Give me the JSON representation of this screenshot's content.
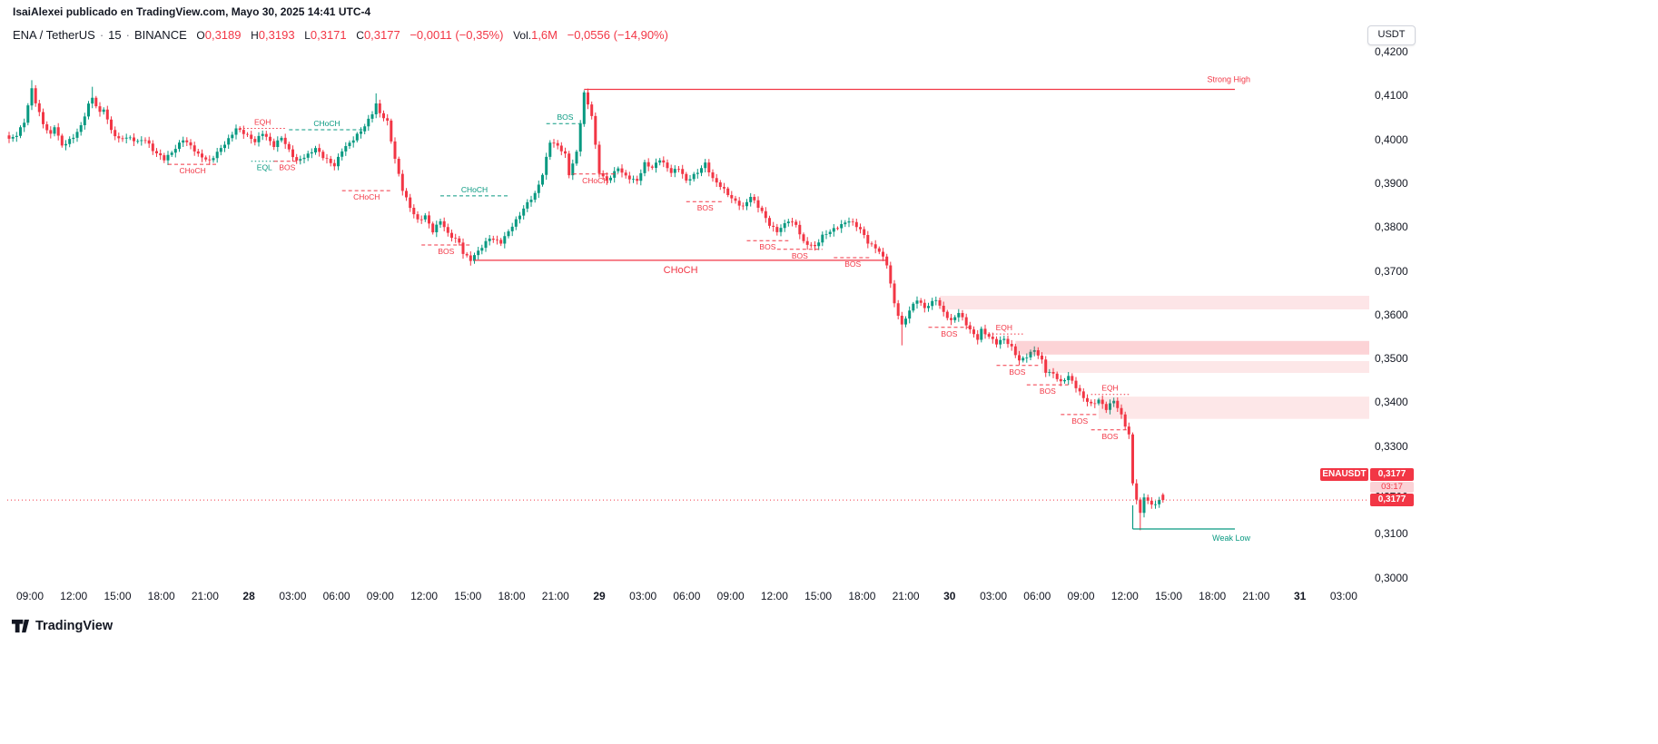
{
  "attribution": "IsaiAlexei publicado en TradingView.com, Mayo 30, 2025 14:41 UTC-4",
  "toolbar": {
    "currency_button": "USDT"
  },
  "legend": {
    "symbol": "ENA / TetherUS",
    "separator": "·",
    "interval": "15",
    "exchange": "BINANCE",
    "ohlc": [
      {
        "label": "O",
        "value": "0,3189"
      },
      {
        "label": "H",
        "value": "0,3193"
      },
      {
        "label": "L",
        "value": "0,3171"
      },
      {
        "label": "C",
        "value": "0,3177"
      }
    ],
    "change": "−0,0011 (−0,35%)",
    "volume_label": "Vol.",
    "volume_value": "1,6M",
    "volume_change": "−0,0556 (−14,90%)"
  },
  "price_badges": {
    "symbol": "ENAUSDT",
    "last_price": "0,3177",
    "countdown": "03:17"
  },
  "footer": {
    "brand": "TradingView"
  },
  "chart_data": {
    "type": "candlestick",
    "symbol": "ENA/USDT",
    "exchange": "BINANCE",
    "interval_minutes": 15,
    "up_color": "#089981",
    "down_color": "#f23645",
    "grid": false,
    "y_axis": {
      "min": 0.2965,
      "max": 0.4235,
      "ticks": [
        {
          "label": "0,4200",
          "value": 0.42
        },
        {
          "label": "0,4100",
          "value": 0.41
        },
        {
          "label": "0,4000",
          "value": 0.4
        },
        {
          "label": "0,3900",
          "value": 0.39
        },
        {
          "label": "0,3800",
          "value": 0.38
        },
        {
          "label": "0,3700",
          "value": 0.37
        },
        {
          "label": "0,3600",
          "value": 0.36
        },
        {
          "label": "0,3500",
          "value": 0.35
        },
        {
          "label": "0,3400",
          "value": 0.34
        },
        {
          "label": "0,3300",
          "value": 0.33
        },
        {
          "label": "0,3200",
          "value": 0.32
        },
        {
          "label": "0,3100",
          "value": 0.31
        },
        {
          "label": "0,3000",
          "value": 0.3
        }
      ]
    },
    "x_axis": {
      "labels": [
        {
          "text": "09:00"
        },
        {
          "text": "12:00"
        },
        {
          "text": "15:00"
        },
        {
          "text": "18:00"
        },
        {
          "text": "21:00"
        },
        {
          "text": "28",
          "major": true
        },
        {
          "text": "03:00"
        },
        {
          "text": "06:00"
        },
        {
          "text": "09:00"
        },
        {
          "text": "12:00"
        },
        {
          "text": "15:00"
        },
        {
          "text": "18:00"
        },
        {
          "text": "21:00"
        },
        {
          "text": "29",
          "major": true
        },
        {
          "text": "03:00"
        },
        {
          "text": "06:00"
        },
        {
          "text": "09:00"
        },
        {
          "text": "12:00"
        },
        {
          "text": "15:00"
        },
        {
          "text": "18:00"
        },
        {
          "text": "21:00"
        },
        {
          "text": "30",
          "major": true
        },
        {
          "text": "03:00"
        },
        {
          "text": "06:00"
        },
        {
          "text": "09:00"
        },
        {
          "text": "12:00"
        },
        {
          "text": "15:00"
        },
        {
          "text": "18:00"
        },
        {
          "text": "21:00"
        },
        {
          "text": "31",
          "major": true
        },
        {
          "text": "03:00"
        }
      ]
    },
    "current_price": 0.3177,
    "candles": {
      "count": 306,
      "price_path": [
        [
          0,
          0.4
        ],
        [
          2,
          0.401
        ],
        [
          4,
          0.404
        ],
        [
          6,
          0.4115
        ],
        [
          7,
          0.4085
        ],
        [
          9,
          0.4035
        ],
        [
          11,
          0.401
        ],
        [
          12,
          0.403
        ],
        [
          14,
          0.3985
        ],
        [
          17,
          0.4005
        ],
        [
          19,
          0.403
        ],
        [
          21,
          0.408
        ],
        [
          22,
          0.4095
        ],
        [
          24,
          0.406
        ],
        [
          25,
          0.407
        ],
        [
          27,
          0.402
        ],
        [
          29,
          0.4
        ],
        [
          31,
          0.4005
        ],
        [
          34,
          0.3995
        ],
        [
          36,
          0.4
        ],
        [
          38,
          0.3975
        ],
        [
          41,
          0.3955
        ],
        [
          43,
          0.397
        ],
        [
          46,
          0.4
        ],
        [
          48,
          0.3985
        ],
        [
          50,
          0.3965
        ],
        [
          53,
          0.395
        ],
        [
          55,
          0.397
        ],
        [
          58,
          0.4
        ],
        [
          60,
          0.4025
        ],
        [
          62,
          0.4015
        ],
        [
          65,
          0.3995
        ],
        [
          67,
          0.4015
        ],
        [
          70,
          0.3985
        ],
        [
          72,
          0.4005
        ],
        [
          74,
          0.3975
        ],
        [
          76,
          0.395
        ],
        [
          79,
          0.3965
        ],
        [
          81,
          0.398
        ],
        [
          83,
          0.396
        ],
        [
          86,
          0.394
        ],
        [
          88,
          0.3975
        ],
        [
          91,
          0.4
        ],
        [
          94,
          0.403
        ],
        [
          96,
          0.406
        ],
        [
          97,
          0.408
        ],
        [
          98,
          0.406
        ],
        [
          100,
          0.404
        ],
        [
          102,
          0.3955
        ],
        [
          104,
          0.3885
        ],
        [
          106,
          0.3845
        ],
        [
          108,
          0.3815
        ],
        [
          110,
          0.3825
        ],
        [
          112,
          0.379
        ],
        [
          114,
          0.3815
        ],
        [
          116,
          0.3785
        ],
        [
          119,
          0.3765
        ],
        [
          120,
          0.374
        ],
        [
          122,
          0.3725
        ],
        [
          125,
          0.3755
        ],
        [
          127,
          0.3775
        ],
        [
          130,
          0.3765
        ],
        [
          132,
          0.379
        ],
        [
          134,
          0.3815
        ],
        [
          137,
          0.3855
        ],
        [
          139,
          0.3875
        ],
        [
          141,
          0.392
        ],
        [
          143,
          0.3995
        ],
        [
          145,
          0.3985
        ],
        [
          147,
          0.3965
        ],
        [
          148,
          0.392
        ],
        [
          150,
          0.397
        ],
        [
          152,
          0.4105
        ],
        [
          154,
          0.4055
        ],
        [
          155,
          0.3985
        ],
        [
          156,
          0.3925
        ],
        [
          158,
          0.3905
        ],
        [
          161,
          0.3935
        ],
        [
          163,
          0.3915
        ],
        [
          166,
          0.3905
        ],
        [
          168,
          0.3945
        ],
        [
          170,
          0.3935
        ],
        [
          172,
          0.3955
        ],
        [
          175,
          0.3925
        ],
        [
          177,
          0.3935
        ],
        [
          179,
          0.3905
        ],
        [
          182,
          0.3925
        ],
        [
          184,
          0.3945
        ],
        [
          186,
          0.391
        ],
        [
          189,
          0.3885
        ],
        [
          191,
          0.3865
        ],
        [
          194,
          0.3845
        ],
        [
          196,
          0.387
        ],
        [
          199,
          0.3835
        ],
        [
          201,
          0.3805
        ],
        [
          203,
          0.379
        ],
        [
          206,
          0.3815
        ],
        [
          208,
          0.3805
        ],
        [
          210,
          0.3765
        ],
        [
          213,
          0.3755
        ],
        [
          215,
          0.378
        ],
        [
          218,
          0.3795
        ],
        [
          220,
          0.3805
        ],
        [
          222,
          0.3815
        ],
        [
          225,
          0.3795
        ],
        [
          227,
          0.3765
        ],
        [
          230,
          0.3745
        ],
        [
          232,
          0.3715
        ],
        [
          234,
          0.3625
        ],
        [
          236,
          0.3575
        ],
        [
          238,
          0.361
        ],
        [
          240,
          0.3635
        ],
        [
          242,
          0.3615
        ],
        [
          245,
          0.3635
        ],
        [
          247,
          0.3605
        ],
        [
          249,
          0.3585
        ],
        [
          251,
          0.3605
        ],
        [
          254,
          0.3565
        ],
        [
          256,
          0.3545
        ],
        [
          257,
          0.3565
        ],
        [
          259,
          0.355
        ],
        [
          261,
          0.3535
        ],
        [
          263,
          0.3545
        ],
        [
          265,
          0.3525
        ],
        [
          267,
          0.3495
        ],
        [
          269,
          0.3505
        ],
        [
          271,
          0.352
        ],
        [
          273,
          0.3495
        ],
        [
          274,
          0.347
        ],
        [
          276,
          0.3465
        ],
        [
          278,
          0.3445
        ],
        [
          280,
          0.346
        ],
        [
          282,
          0.3435
        ],
        [
          284,
          0.341
        ],
        [
          286,
          0.3395
        ],
        [
          288,
          0.3405
        ],
        [
          290,
          0.3385
        ],
        [
          292,
          0.3405
        ],
        [
          294,
          0.337
        ],
        [
          296,
          0.3325
        ],
        [
          297,
          0.3215
        ],
        [
          299,
          0.3145
        ],
        [
          300,
          0.3185
        ],
        [
          302,
          0.3165
        ],
        [
          304,
          0.3175
        ],
        [
          305,
          0.3177
        ]
      ],
      "forced_extremes": {
        "6": {
          "high": 0.4135
        },
        "22": {
          "high": 0.412
        },
        "97": {
          "high": 0.4105
        },
        "122": {
          "low": 0.3712
        },
        "152": {
          "high": 0.4112
        },
        "236": {
          "low": 0.353
        },
        "299": {
          "low": 0.3108
        }
      },
      "last": {
        "open": 0.3189,
        "high": 0.3193,
        "low": 0.3171,
        "close": 0.3177
      }
    },
    "major_lines": [
      {
        "name": "strong-high",
        "label": "Strong High",
        "price": 0.4114,
        "from": 152,
        "to": 324,
        "color": "down",
        "label_pos": "end-above",
        "label_size": 9
      },
      {
        "name": "choch-major",
        "label": "CHoCH",
        "price": 0.3724,
        "from": 123,
        "to": 232,
        "color": "down",
        "label_pos": "center-below",
        "label_size": 11
      },
      {
        "name": "weak-low",
        "label": "Weak Low",
        "price": 0.3111,
        "from": 297,
        "to": 324,
        "color": "up",
        "label_pos": "end-below",
        "label_size": 9,
        "vertical_from": 0.3165
      }
    ],
    "levels": [
      {
        "label": "CHoCH",
        "price": 0.3943,
        "from": 42,
        "to": 55,
        "style": "dashed",
        "color": "down",
        "label_pos": "below"
      },
      {
        "label": "EQH",
        "price": 0.4025,
        "from": 61,
        "to": 73,
        "style": "dotted",
        "color": "down",
        "label_pos": "above"
      },
      {
        "label": "CHoCH",
        "price": 0.4022,
        "from": 74,
        "to": 94,
        "style": "dashed",
        "color": "up",
        "label_pos": "above"
      },
      {
        "label": "EQL",
        "price": 0.395,
        "from": 64,
        "to": 71,
        "style": "dotted",
        "color": "up",
        "label_pos": "below"
      },
      {
        "label": "BOS",
        "price": 0.395,
        "from": 70,
        "to": 77,
        "style": "dashed",
        "color": "down",
        "label_pos": "below"
      },
      {
        "label": "CHoCH",
        "price": 0.3883,
        "from": 88,
        "to": 101,
        "style": "dashed",
        "color": "down",
        "label_pos": "below"
      },
      {
        "label": "BOS",
        "price": 0.3759,
        "from": 109,
        "to": 122,
        "style": "dashed",
        "color": "down",
        "label_pos": "below"
      },
      {
        "label": "CHoCH",
        "price": 0.3871,
        "from": 114,
        "to": 132,
        "style": "dashed",
        "color": "up",
        "label_pos": "above"
      },
      {
        "label": "BOS",
        "price": 0.4036,
        "from": 142,
        "to": 152,
        "style": "dashed",
        "color": "up",
        "label_pos": "above"
      },
      {
        "label": "CHoCH",
        "price": 0.3921,
        "from": 149,
        "to": 161,
        "style": "dashed",
        "color": "down",
        "label_pos": "below"
      },
      {
        "label": "BOS",
        "price": 0.3858,
        "from": 179,
        "to": 189,
        "style": "dashed",
        "color": "down",
        "label_pos": "below"
      },
      {
        "label": "BOS",
        "price": 0.3769,
        "from": 195,
        "to": 206,
        "style": "dashed",
        "color": "down",
        "label_pos": "below"
      },
      {
        "label": "BOS",
        "price": 0.3749,
        "from": 203,
        "to": 215,
        "style": "dashed",
        "color": "down",
        "label_pos": "below"
      },
      {
        "label": "BOS",
        "price": 0.373,
        "from": 218,
        "to": 228,
        "style": "dashed",
        "color": "down",
        "label_pos": "below"
      },
      {
        "label": "BOS",
        "price": 0.3571,
        "from": 243,
        "to": 254,
        "style": "dashed",
        "color": "down",
        "label_pos": "below"
      },
      {
        "label": "EQH",
        "price": 0.3556,
        "from": 258,
        "to": 268,
        "style": "dotted",
        "color": "down",
        "label_pos": "above"
      },
      {
        "label": "BOS",
        "price": 0.3484,
        "from": 261,
        "to": 272,
        "style": "dashed",
        "color": "down",
        "label_pos": "below"
      },
      {
        "label": "BOS",
        "price": 0.344,
        "from": 269,
        "to": 280,
        "style": "dashed",
        "color": "down",
        "label_pos": "below"
      },
      {
        "label": "EQH",
        "price": 0.3418,
        "from": 286,
        "to": 296,
        "style": "dotted",
        "color": "down",
        "label_pos": "above"
      },
      {
        "label": "BOS",
        "price": 0.3372,
        "from": 278,
        "to": 288,
        "style": "dashed",
        "color": "down",
        "label_pos": "below"
      },
      {
        "label": "BOS",
        "price": 0.3337,
        "from": 286,
        "to": 296,
        "style": "dashed",
        "color": "down",
        "label_pos": "below"
      }
    ],
    "zones": [
      {
        "top": 0.3643,
        "bottom": 0.3612,
        "from": 246,
        "opacity": 0.13
      },
      {
        "top": 0.354,
        "bottom": 0.3509,
        "from": 266,
        "opacity": 0.22
      },
      {
        "top": 0.3494,
        "bottom": 0.3467,
        "from": 273,
        "opacity": 0.12
      },
      {
        "top": 0.3413,
        "bottom": 0.3362,
        "from": 288,
        "opacity": 0.12
      }
    ]
  }
}
